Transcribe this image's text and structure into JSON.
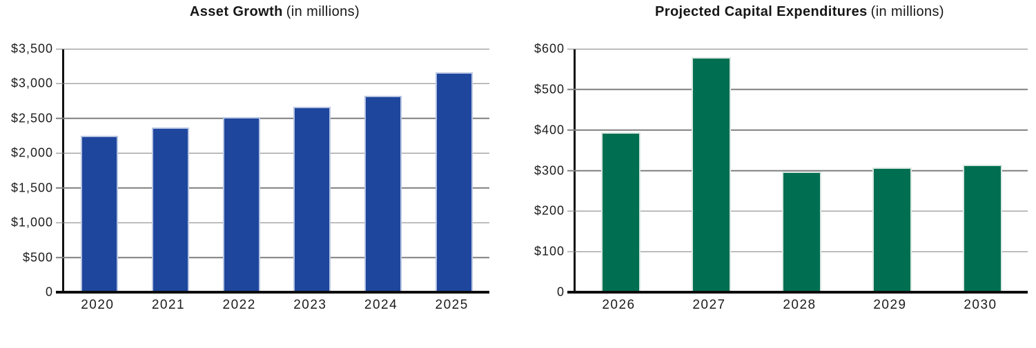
{
  "chart_data": [
    {
      "type": "bar",
      "title": "Asset Growth",
      "subtitle": "(in millions)",
      "categories": [
        "2020",
        "2021",
        "2022",
        "2023",
        "2024",
        "2025"
      ],
      "values": [
        2250,
        2370,
        2520,
        2670,
        2825,
        3160
      ],
      "xlabel": "",
      "ylabel": "",
      "ylim": [
        0,
        3500
      ],
      "ytick_step": 500,
      "yticklabels": [
        "0",
        "$500",
        "$1,000",
        "$1,500",
        "$2,000",
        "$2,500",
        "$3,000",
        "$3,500"
      ],
      "grid": true,
      "legend": "none",
      "bar_color": "#1E469C",
      "bar_edge_color": "#B7C4E2",
      "bar_width_frac": 0.525
    },
    {
      "type": "bar",
      "title": "Projected Capital Expenditures",
      "subtitle": "(in millions)",
      "categories": [
        "2026",
        "2027",
        "2028",
        "2029",
        "2030"
      ],
      "values": [
        395,
        580,
        298,
        308,
        315
      ],
      "xlabel": "",
      "ylabel": "",
      "ylim": [
        0,
        600
      ],
      "ytick_step": 100,
      "yticklabels": [
        "0",
        "$100",
        "$200",
        "$300",
        "$400",
        "$500",
        "$600"
      ],
      "grid": true,
      "legend": "none",
      "bar_color": "#006F51",
      "bar_edge_color": "#D9E8E1",
      "bar_width_frac": 0.435
    }
  ],
  "style": {
    "grid_color": "#7F7F7F",
    "axis_color": "#111111",
    "text_color": "#1F1F1F",
    "background": "#FFFFFF"
  }
}
